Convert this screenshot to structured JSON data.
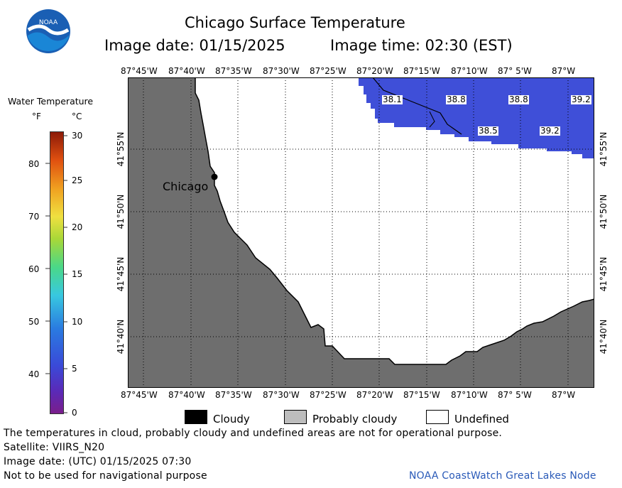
{
  "header": {
    "title": "Chicago Surface Temperature",
    "image_date_label": "Image date: 01/15/2025",
    "image_time_label": "Image time: 02:30 (EST)"
  },
  "colorbar": {
    "title": "Water Temperature",
    "unit_f": "°F",
    "unit_c": "°C",
    "f_ticks": [
      "80",
      "70",
      "60",
      "50",
      "40"
    ],
    "c_ticks": [
      "30",
      "25",
      "20",
      "15",
      "10",
      "5",
      "0"
    ],
    "f_range": [
      32,
      86
    ],
    "c_range": [
      0,
      30
    ]
  },
  "map": {
    "lon_labels": [
      "87°45'W",
      "87°40'W",
      "87°35'W",
      "87°30'W",
      "87°25'W",
      "87°20'W",
      "87°15'W",
      "87°10'W",
      "87° 5'W",
      "87°W"
    ],
    "lat_labels": [
      "41°55'N",
      "41°50'N",
      "41°45'N",
      "41°40'N"
    ],
    "city_label": "Chicago",
    "temps": [
      "38.1",
      "38.8",
      "38.8",
      "39.2",
      "38.5",
      "39.2"
    ],
    "colors": {
      "land": "#6e6e6e",
      "water": "#3f4fd8",
      "undefined": "#ffffff"
    }
  },
  "legend": {
    "cloudy": "Cloudy",
    "probably_cloudy": "Probably cloudy",
    "undefined": "Undefined",
    "colors": {
      "cloudy": "#000000",
      "probably_cloudy": "#bdbdbd",
      "undefined": "#ffffff"
    }
  },
  "footer": {
    "disclaimer": "The temperatures in cloud, probably cloudy and undefined areas are not for operational purpose.",
    "satellite": "Satellite: VIIRS_N20",
    "utc_date": "Image date: (UTC) 01/15/2025  07:30",
    "nav_warning": "Not to be used for navigational purpose",
    "credit": "NOAA CoastWatch Great Lakes Node"
  },
  "logo": {
    "text": "NOAA"
  }
}
